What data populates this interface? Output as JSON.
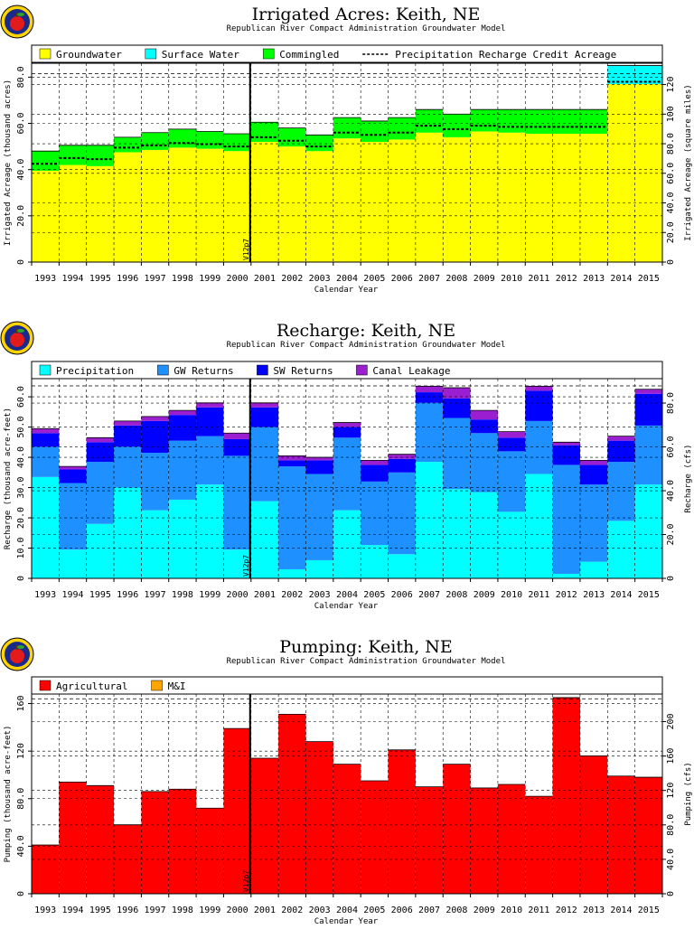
{
  "years": [
    "1993",
    "1994",
    "1995",
    "1996",
    "1997",
    "1998",
    "1999",
    "2000",
    "2001",
    "2002",
    "2003",
    "2004",
    "2005",
    "2006",
    "2007",
    "2008",
    "2009",
    "2010",
    "2011",
    "2012",
    "2013",
    "2014",
    "2015"
  ],
  "xlabel": "Calendar Year",
  "marker_label": "V12p7",
  "chart_data": [
    {
      "type": "area",
      "title": "Irrigated Acres: Keith, NE",
      "subtitle": "Republican River Compact Administration Groundwater Model",
      "ylabel": "Irrigated Acreage (thousand acres)",
      "y2label": "Irrigated Acreage (square miles)",
      "ylim": [
        0,
        86
      ],
      "yticks": [
        0,
        20.0,
        40.0,
        60.0,
        80.0
      ],
      "ytick_labels": [
        "0",
        "20.0",
        "40.0",
        "60.0",
        "80.0"
      ],
      "y2_per_unit": 1.5625,
      "y2ticks": [
        0,
        20.0,
        40.0,
        60.0,
        80.0,
        100,
        120
      ],
      "y2tick_labels": [
        "0",
        "20.0",
        "40.0",
        "60.0",
        "80.0",
        "100",
        "120"
      ],
      "stacked": true,
      "legend_position": "top",
      "series": [
        {
          "name": "Groundwater",
          "color": "#ffff00",
          "values": [
            39.5,
            42,
            41.5,
            47.5,
            48.5,
            49.5,
            49,
            48,
            52,
            50,
            48,
            53.5,
            52,
            53,
            56,
            54,
            56.5,
            56,
            55.5,
            55.5,
            55.5,
            77,
            77
          ]
        },
        {
          "name": "Surface Water",
          "color": "#00ffff",
          "values": [
            0,
            0,
            0,
            0,
            0,
            0,
            0,
            0,
            0,
            0,
            0,
            0,
            0,
            0,
            0,
            0,
            0,
            0,
            0,
            0,
            0,
            8,
            8
          ]
        },
        {
          "name": "Commingled",
          "color": "#00ff00",
          "values": [
            8.5,
            8.5,
            9,
            6.5,
            7.5,
            8,
            7.5,
            7.5,
            8.5,
            8,
            7,
            9,
            9,
            9.5,
            10,
            10,
            9.5,
            10,
            10.5,
            10.5,
            10.5,
            0,
            0
          ]
        }
      ],
      "overlay_line": {
        "name": "Precipitation Recharge Credit Acreage",
        "values": [
          42.5,
          45,
          44.5,
          49.5,
          50.5,
          51.5,
          51,
          50,
          54,
          52.5,
          50,
          56,
          55,
          56,
          59,
          57.5,
          59,
          58.5,
          58.5,
          58.5,
          58.5,
          78,
          78
        ]
      },
      "hlines": [
        81.5
      ]
    },
    {
      "type": "bar",
      "title": "Recharge: Keith, NE",
      "subtitle": "Republican River Compact Administration Groundwater Model",
      "ylabel": "Recharge (thousand acre-feet)",
      "y2label": "Recharge (cfs)",
      "ylim": [
        0,
        66
      ],
      "yticks": [
        0,
        10.0,
        20.0,
        30.0,
        40.0,
        50.0,
        60.0
      ],
      "ytick_labels": [
        "0",
        "10.0",
        "20.0",
        "30.0",
        "40.0",
        "50.0",
        "60.0"
      ],
      "y2_per_unit": 1.381,
      "y2ticks": [
        0,
        20.0,
        40.0,
        60.0,
        80.0
      ],
      "y2tick_labels": [
        "0",
        "20.0",
        "40.0",
        "60.0",
        "80.0"
      ],
      "stacked": true,
      "legend_position": "top",
      "series": [
        {
          "name": "Precipitation",
          "color": "#00ffff",
          "values": [
            33.5,
            9.5,
            18,
            30,
            22.5,
            26,
            31,
            9.5,
            25.5,
            3,
            6,
            22.5,
            11,
            8,
            38.5,
            29.5,
            28.5,
            22,
            34.5,
            1.5,
            5.5,
            19,
            31
          ]
        },
        {
          "name": "GW Returns",
          "color": "#1e90ff",
          "values": [
            10,
            22,
            20.5,
            13.5,
            19,
            19.5,
            16,
            31,
            24.5,
            34,
            28.5,
            24,
            21,
            27,
            19.5,
            23.5,
            19.5,
            20,
            17.5,
            36,
            25.5,
            19.5,
            19.5
          ]
        },
        {
          "name": "SW Returns",
          "color": "#0000ff",
          "values": [
            4.5,
            4.5,
            6.5,
            7,
            10.5,
            8.5,
            9.5,
            5.5,
            6.5,
            2,
            4.5,
            3.5,
            5.5,
            4.5,
            3.5,
            6.5,
            4.5,
            4.5,
            10,
            6.5,
            6.5,
            7,
            10.5
          ]
        },
        {
          "name": "Canal Leakage",
          "color": "#9b1fd1",
          "values": [
            1.5,
            1,
            1.5,
            1.5,
            1.5,
            1.5,
            1.5,
            2,
            1.5,
            1.5,
            1,
            1.5,
            1.5,
            1.5,
            2,
            3.5,
            3,
            2,
            1.5,
            1,
            1.5,
            1.5,
            1.5
          ]
        }
      ],
      "hlines": [
        63.6
      ]
    },
    {
      "type": "bar",
      "title": "Pumping: Keith, NE",
      "subtitle": "Republican River Compact Administration Groundwater Model",
      "ylabel": "Pumping (thousand acre-feet)",
      "y2label": "Pumping (cfs)",
      "ylim": [
        0,
        168
      ],
      "yticks": [
        0,
        40.0,
        80.0,
        120,
        160
      ],
      "ytick_labels": [
        "0",
        "40.0",
        "80.0",
        "120",
        "160"
      ],
      "y2_per_unit": 1.381,
      "y2ticks": [
        0,
        40.0,
        80.0,
        120,
        160,
        200
      ],
      "y2tick_labels": [
        "0",
        "40.0",
        "80.0",
        "120",
        "160",
        "200"
      ],
      "stacked": true,
      "legend_position": "top",
      "series": [
        {
          "name": "Agricultural",
          "color": "#ff0000",
          "values": [
            41,
            94,
            91,
            58,
            86,
            88,
            72,
            139,
            114,
            151,
            128,
            109,
            95,
            121,
            90,
            109,
            89,
            92,
            82,
            165,
            116,
            99,
            98
          ]
        },
        {
          "name": "M&I",
          "color": "#ffa500",
          "values": [
            0,
            0,
            0,
            0,
            0,
            0,
            0,
            0,
            0,
            0,
            0,
            0,
            0,
            0,
            0,
            0,
            0,
            0,
            0,
            0,
            0,
            0,
            0
          ]
        }
      ],
      "hlines": [
        164
      ]
    }
  ]
}
